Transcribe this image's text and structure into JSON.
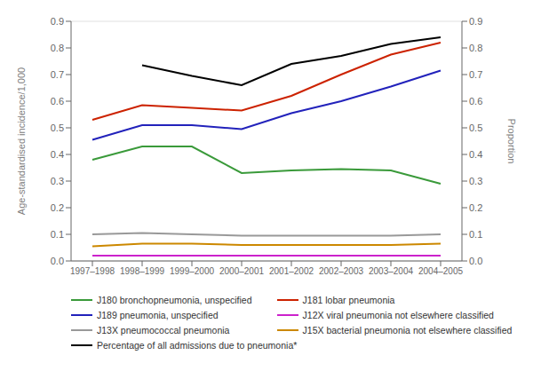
{
  "chart_data": {
    "type": "line",
    "categories": [
      "1997–1998",
      "1998–1999",
      "1999–2000",
      "2000–2001",
      "2001–2002",
      "2002–2003",
      "2003–2004",
      "2004–2005"
    ],
    "series": [
      {
        "name": "J180 bronchopneumonia, unspecified",
        "color": "#3a9a3a",
        "values": [
          0.38,
          0.43,
          0.43,
          0.33,
          0.34,
          0.345,
          0.34,
          0.29
        ]
      },
      {
        "name": "J181 lobar pneumonia",
        "color": "#cc2200",
        "values": [
          0.53,
          0.585,
          0.575,
          0.565,
          0.62,
          0.7,
          0.775,
          0.82
        ]
      },
      {
        "name": "J189 pneumonia, unspecified",
        "color": "#2222bb",
        "values": [
          0.455,
          0.51,
          0.51,
          0.495,
          0.555,
          0.6,
          0.655,
          0.715
        ]
      },
      {
        "name": "J12X viral pneumonia not elsewhere classified",
        "color": "#cc22cc",
        "values": [
          0.02,
          0.02,
          0.02,
          0.02,
          0.02,
          0.02,
          0.02,
          0.02
        ]
      },
      {
        "name": "J13X pneumococcal pneumonia",
        "color": "#999999",
        "values": [
          0.1,
          0.105,
          0.1,
          0.095,
          0.095,
          0.095,
          0.095,
          0.1
        ]
      },
      {
        "name": "J15X bacterial pneumonia not elsewhere classified",
        "color": "#cc8800",
        "values": [
          0.055,
          0.065,
          0.065,
          0.06,
          0.06,
          0.06,
          0.06,
          0.065
        ]
      },
      {
        "name": "Percentage of all admissions due to pneumonia*",
        "color": "#000000",
        "axis": "y2",
        "values": [
          null,
          0.735,
          0.695,
          0.66,
          0.74,
          0.77,
          0.815,
          0.84
        ]
      }
    ],
    "y_label": "Age-standardised incidence/1,000",
    "y2_label": "Proportion",
    "ylim": [
      0.0,
      0.9
    ],
    "yticks": [
      {
        "value": 0.0,
        "label": "0.0"
      },
      0.1,
      0.2,
      0.3,
      0.4,
      0.5,
      0.6,
      0.7,
      0.8,
      0.9
    ],
    "y2lim": [
      0.0,
      0.9
    ],
    "y2ticks": [
      {
        "value": 0.0,
        "label": "0.0"
      },
      0.1,
      0.2,
      0.3,
      0.4,
      0.5,
      0.6,
      0.7,
      0.8,
      0.9
    ],
    "grid": true,
    "legend": "bottom"
  }
}
